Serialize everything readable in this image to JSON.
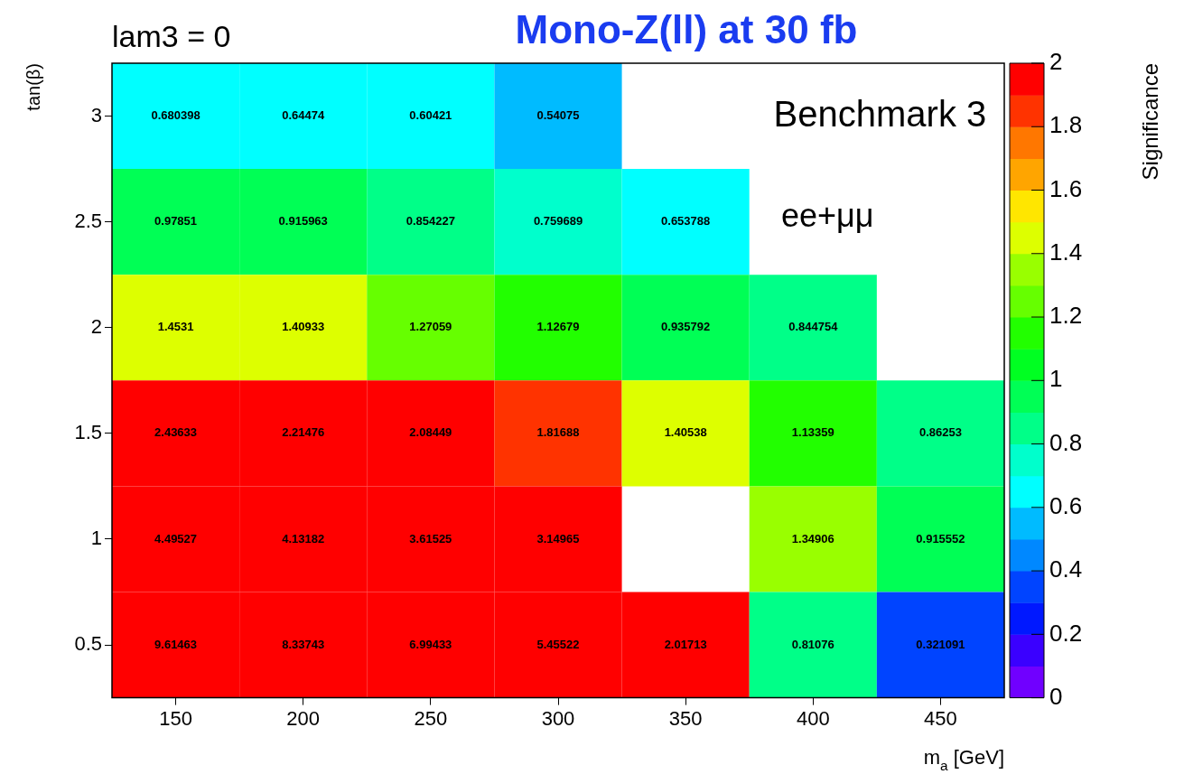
{
  "chart_data": {
    "type": "heatmap",
    "title": "Mono-Z(ll) at 30 fb",
    "subtitle": "lam3 = 0",
    "xlabel": "m$_{a}$ [GeV]",
    "ylabel": "tan(β)",
    "clabel": "Significance",
    "annotations": [
      "Benchmark 3",
      "ee+μμ"
    ],
    "categories": [
      "150",
      "200",
      "250",
      "300",
      "350",
      "400",
      "450"
    ],
    "y_categories": [
      "3",
      "2.5",
      "2",
      "1.5",
      "1",
      "0.5"
    ],
    "cells": [
      [
        0.680398,
        0.64474,
        0.60421,
        0.54075,
        null,
        null,
        null
      ],
      [
        0.97851,
        0.915963,
        0.854227,
        0.759689,
        0.653788,
        null,
        null
      ],
      [
        1.4531,
        1.40933,
        1.27059,
        1.12679,
        0.935792,
        0.844754,
        null
      ],
      [
        2.43633,
        2.21476,
        2.08449,
        1.81688,
        1.40538,
        1.13359,
        0.86253
      ],
      [
        4.49527,
        4.13182,
        3.61525,
        3.14965,
        null,
        1.34906,
        0.915552
      ],
      [
        9.61463,
        8.33743,
        6.99433,
        5.45522,
        2.01713,
        0.81076,
        0.321091
      ]
    ],
    "clim": [
      0,
      2
    ],
    "cticks": [
      0,
      0.2,
      0.4,
      0.6,
      0.8,
      1,
      1.2,
      1.4,
      1.6,
      1.8,
      2
    ],
    "data_labels": true
  }
}
